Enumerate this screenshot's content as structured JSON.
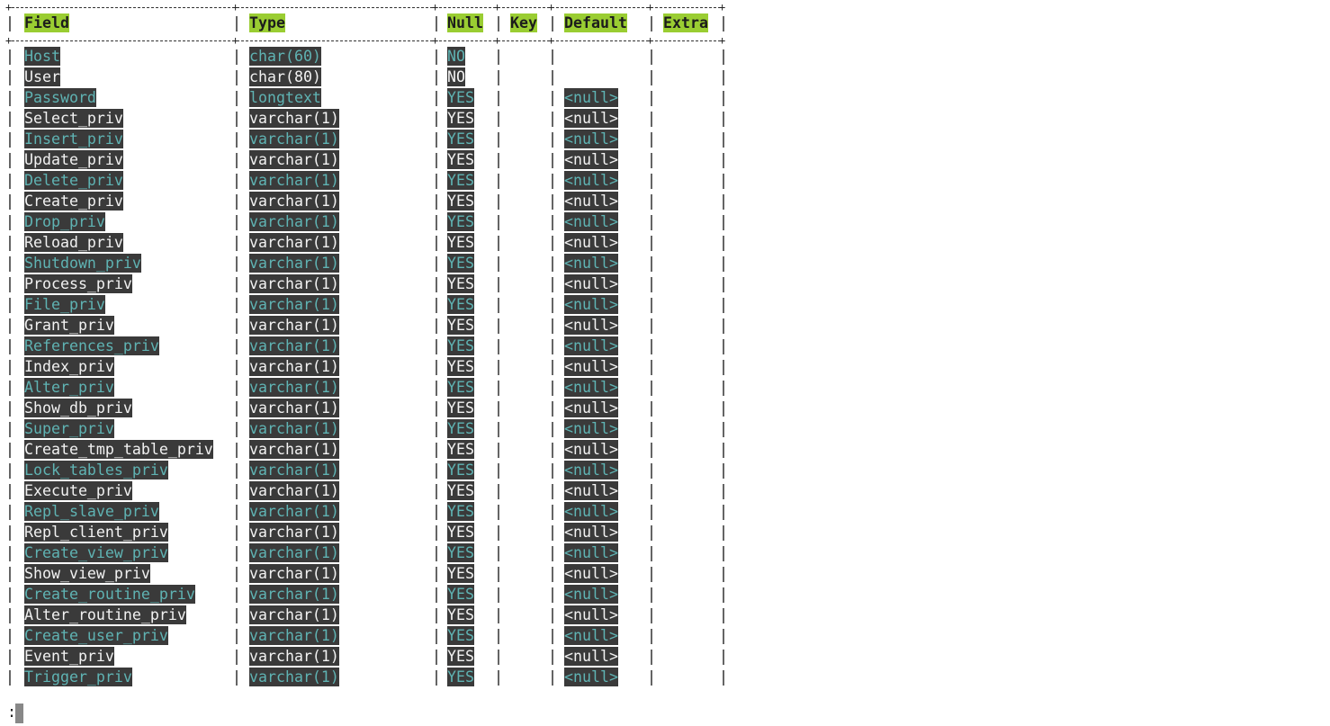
{
  "table": {
    "columns": [
      "Field",
      "Type",
      "Null",
      "Key",
      "Default",
      "Extra"
    ],
    "rows": [
      [
        "Host",
        "char(60)",
        "NO",
        "",
        "",
        ""
      ],
      [
        "User",
        "char(80)",
        "NO",
        "",
        "",
        ""
      ],
      [
        "Password",
        "longtext",
        "YES",
        "",
        "<null>",
        ""
      ],
      [
        "Select_priv",
        "varchar(1)",
        "YES",
        "",
        "<null>",
        ""
      ],
      [
        "Insert_priv",
        "varchar(1)",
        "YES",
        "",
        "<null>",
        ""
      ],
      [
        "Update_priv",
        "varchar(1)",
        "YES",
        "",
        "<null>",
        ""
      ],
      [
        "Delete_priv",
        "varchar(1)",
        "YES",
        "",
        "<null>",
        ""
      ],
      [
        "Create_priv",
        "varchar(1)",
        "YES",
        "",
        "<null>",
        ""
      ],
      [
        "Drop_priv",
        "varchar(1)",
        "YES",
        "",
        "<null>",
        ""
      ],
      [
        "Reload_priv",
        "varchar(1)",
        "YES",
        "",
        "<null>",
        ""
      ],
      [
        "Shutdown_priv",
        "varchar(1)",
        "YES",
        "",
        "<null>",
        ""
      ],
      [
        "Process_priv",
        "varchar(1)",
        "YES",
        "",
        "<null>",
        ""
      ],
      [
        "File_priv",
        "varchar(1)",
        "YES",
        "",
        "<null>",
        ""
      ],
      [
        "Grant_priv",
        "varchar(1)",
        "YES",
        "",
        "<null>",
        ""
      ],
      [
        "References_priv",
        "varchar(1)",
        "YES",
        "",
        "<null>",
        ""
      ],
      [
        "Index_priv",
        "varchar(1)",
        "YES",
        "",
        "<null>",
        ""
      ],
      [
        "Alter_priv",
        "varchar(1)",
        "YES",
        "",
        "<null>",
        ""
      ],
      [
        "Show_db_priv",
        "varchar(1)",
        "YES",
        "",
        "<null>",
        ""
      ],
      [
        "Super_priv",
        "varchar(1)",
        "YES",
        "",
        "<null>",
        ""
      ],
      [
        "Create_tmp_table_priv",
        "varchar(1)",
        "YES",
        "",
        "<null>",
        ""
      ],
      [
        "Lock_tables_priv",
        "varchar(1)",
        "YES",
        "",
        "<null>",
        ""
      ],
      [
        "Execute_priv",
        "varchar(1)",
        "YES",
        "",
        "<null>",
        ""
      ],
      [
        "Repl_slave_priv",
        "varchar(1)",
        "YES",
        "",
        "<null>",
        ""
      ],
      [
        "Repl_client_priv",
        "varchar(1)",
        "YES",
        "",
        "<null>",
        ""
      ],
      [
        "Create_view_priv",
        "varchar(1)",
        "YES",
        "",
        "<null>",
        ""
      ],
      [
        "Show_view_priv",
        "varchar(1)",
        "YES",
        "",
        "<null>",
        ""
      ],
      [
        "Create_routine_priv",
        "varchar(1)",
        "YES",
        "",
        "<null>",
        ""
      ],
      [
        "Alter_routine_priv",
        "varchar(1)",
        "YES",
        "",
        "<null>",
        ""
      ],
      [
        "Create_user_priv",
        "varchar(1)",
        "YES",
        "",
        "<null>",
        ""
      ],
      [
        "Event_priv",
        "varchar(1)",
        "YES",
        "",
        "<null>",
        ""
      ],
      [
        "Trigger_priv",
        "varchar(1)",
        "YES",
        "",
        "<null>",
        ""
      ]
    ]
  },
  "pager": {
    "prompt": ":"
  },
  "colors": {
    "header_bg": "#9acd32",
    "cell_bg": "#3a3a3a",
    "odd_row_text": "#5fb3b3",
    "even_row_text": "#f2f2f2"
  }
}
